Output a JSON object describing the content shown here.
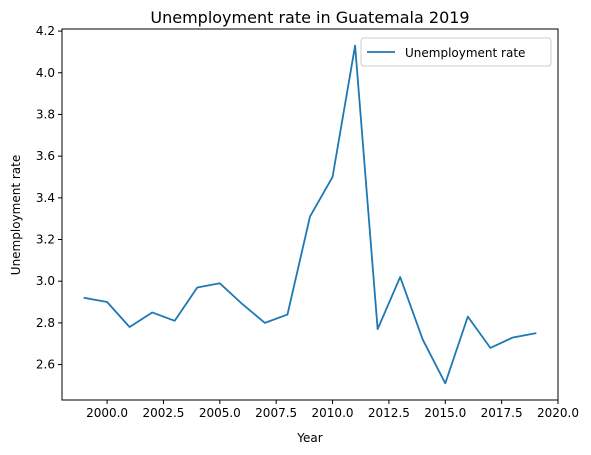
{
  "chart_data": {
    "type": "line",
    "title": "Unemployment rate in Guatemala 2019",
    "xlabel": "Year",
    "ylabel": "Unemployment rate",
    "xlim": [
      1998.0,
      2020.0
    ],
    "ylim": [
      2.43,
      4.21
    ],
    "x_ticks": [
      2000.0,
      2002.5,
      2005.0,
      2007.5,
      2010.0,
      2012.5,
      2015.0,
      2017.5,
      2020.0
    ],
    "x_tick_labels": [
      "2000.0",
      "2002.5",
      "2005.0",
      "2007.5",
      "2010.0",
      "2012.5",
      "2015.0",
      "2017.5",
      "2020.0"
    ],
    "y_ticks": [
      2.6,
      2.8,
      3.0,
      3.2,
      3.4,
      3.6,
      3.8,
      4.0,
      4.2
    ],
    "y_tick_labels": [
      "2.6",
      "2.8",
      "3.0",
      "3.2",
      "3.4",
      "3.6",
      "3.8",
      "4.0",
      "4.2"
    ],
    "grid": false,
    "legend_position": "top-right",
    "series": [
      {
        "name": "Unemployment rate",
        "color": "#1f77b4",
        "x": [
          1999,
          2000,
          2001,
          2002,
          2003,
          2004,
          2005,
          2006,
          2007,
          2008,
          2009,
          2010,
          2011,
          2012,
          2013,
          2014,
          2015,
          2016,
          2017,
          2018,
          2019
        ],
        "y": [
          2.92,
          2.9,
          2.78,
          2.85,
          2.81,
          2.97,
          2.99,
          2.89,
          2.8,
          2.84,
          3.31,
          3.5,
          4.13,
          2.77,
          3.02,
          2.72,
          2.51,
          2.83,
          2.68,
          2.73,
          2.75
        ]
      }
    ]
  }
}
